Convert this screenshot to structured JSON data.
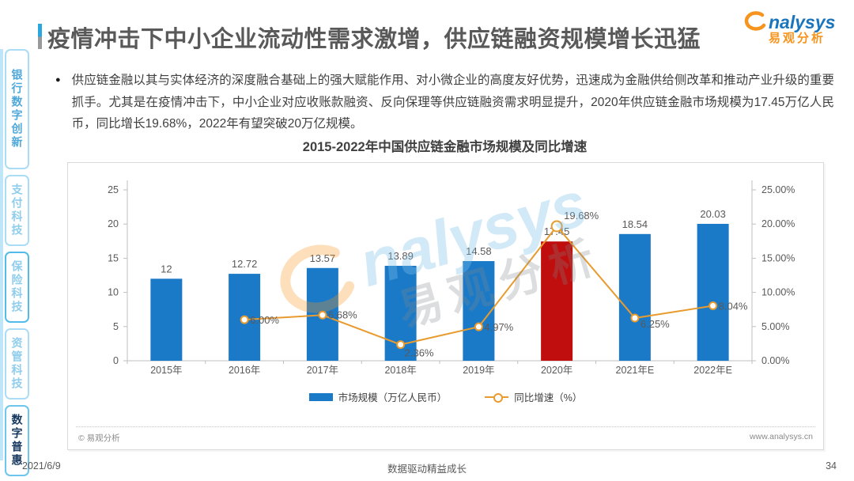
{
  "header": {
    "title": "疫情冲击下中小企业流动性需求激增，供应链融资规模增长迅猛",
    "logo": {
      "brand_en": "nalysys",
      "brand_cn": "易观分析"
    }
  },
  "sidebar": {
    "tabs": [
      {
        "label": "银行数字创新"
      },
      {
        "label": "支付科技"
      },
      {
        "label": "保险科技"
      },
      {
        "label": "资管科技"
      },
      {
        "label": "数字普惠"
      }
    ]
  },
  "summary": {
    "bullet": "●",
    "text": "供应链金融以其与实体经济的深度融合基础上的强大赋能作用、对小微企业的高度友好优势，迅速成为金融供给侧改革和推动产业升级的重要抓手。尤其是在疫情冲击下，中小企业对应收账款融资、反向保理等供应链融资需求明显提升，2020年供应链金融市场规模为17.45万亿人民币，同比增长19.68%，2022年有望突破20万亿规模。"
  },
  "chart_data": {
    "type": "bar",
    "title": "2015-2022年中国供应链金融市场规模及同比增速",
    "categories": [
      "2015年",
      "2016年",
      "2017年",
      "2018年",
      "2019年",
      "2020年",
      "2021年E",
      "2022年E"
    ],
    "series": [
      {
        "name": "市场规模（万亿人民币）",
        "type": "bar",
        "values": [
          12,
          12.72,
          13.57,
          13.89,
          14.58,
          17.45,
          18.54,
          20.03
        ],
        "labels": [
          "12",
          "12.72",
          "13.57",
          "13.89",
          "14.58",
          "17.45",
          "18.54",
          "20.03"
        ],
        "color": "#1b7ac8",
        "highlight_index": 5,
        "highlight_color": "#c00d0d"
      },
      {
        "name": "同比增速（%）",
        "type": "line",
        "values": [
          null,
          6.0,
          6.68,
          2.36,
          4.97,
          19.68,
          6.25,
          8.04
        ],
        "labels": [
          "",
          "6.00%",
          "6.68%",
          "2.36%",
          "4.97%",
          "19.68%",
          "6.25%",
          "8.04%"
        ],
        "color": "#e89b2e"
      }
    ],
    "left_axis": {
      "min": 0,
      "max": 25,
      "ticks": [
        0,
        5,
        10,
        15,
        20,
        25
      ]
    },
    "right_axis": {
      "min": 0,
      "max": 25,
      "tick_labels": [
        "0.00%",
        "5.00%",
        "10.00%",
        "15.00%",
        "20.00%",
        "25.00%"
      ]
    },
    "legend_position": "bottom",
    "grid": false
  },
  "card_footer": {
    "copyright": "© 易观分析",
    "website": "www.analysys.cn"
  },
  "watermark": {
    "brand_en": "nalysys",
    "brand_cn": "易观分析"
  },
  "page_footer": {
    "date": "2021/6/9",
    "slogan": "数据驱动精益成长",
    "page": "34"
  }
}
